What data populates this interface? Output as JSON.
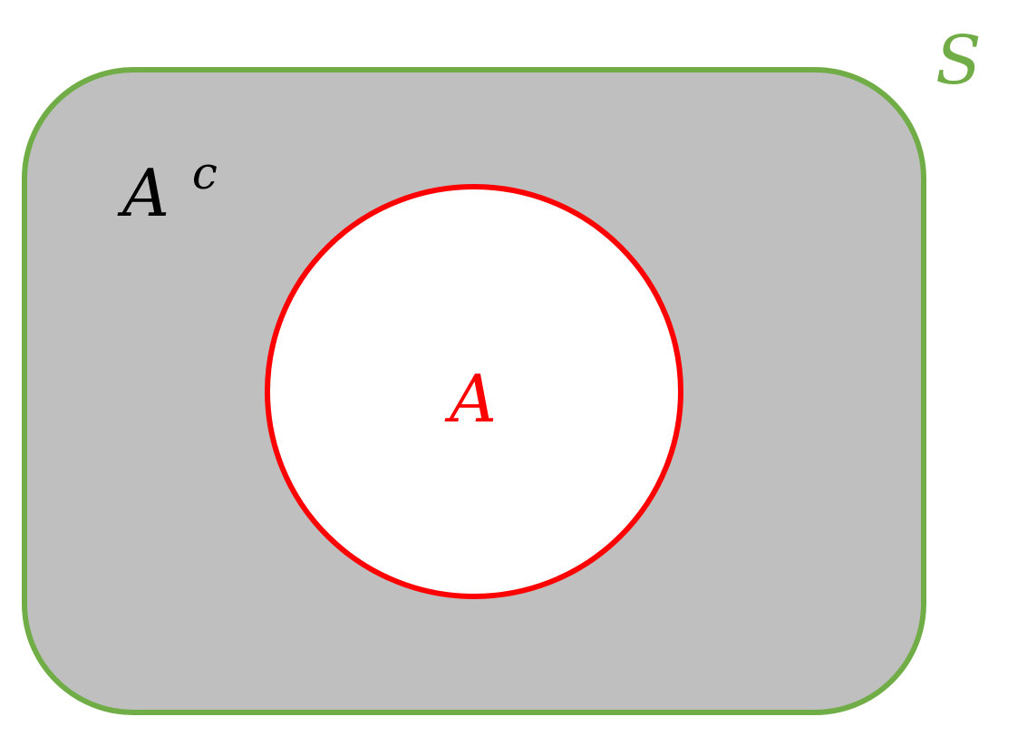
{
  "diagram": {
    "type": "venn-complement",
    "universal_set": {
      "label": "S",
      "border_color": "#70AD47",
      "fill_color": "#BFBFBF"
    },
    "set": {
      "label": "A",
      "border_color": "#FF0000",
      "fill_color": "#FFFFFF"
    },
    "complement": {
      "label_base": "A",
      "label_superscript": "c",
      "color": "#000000"
    }
  }
}
